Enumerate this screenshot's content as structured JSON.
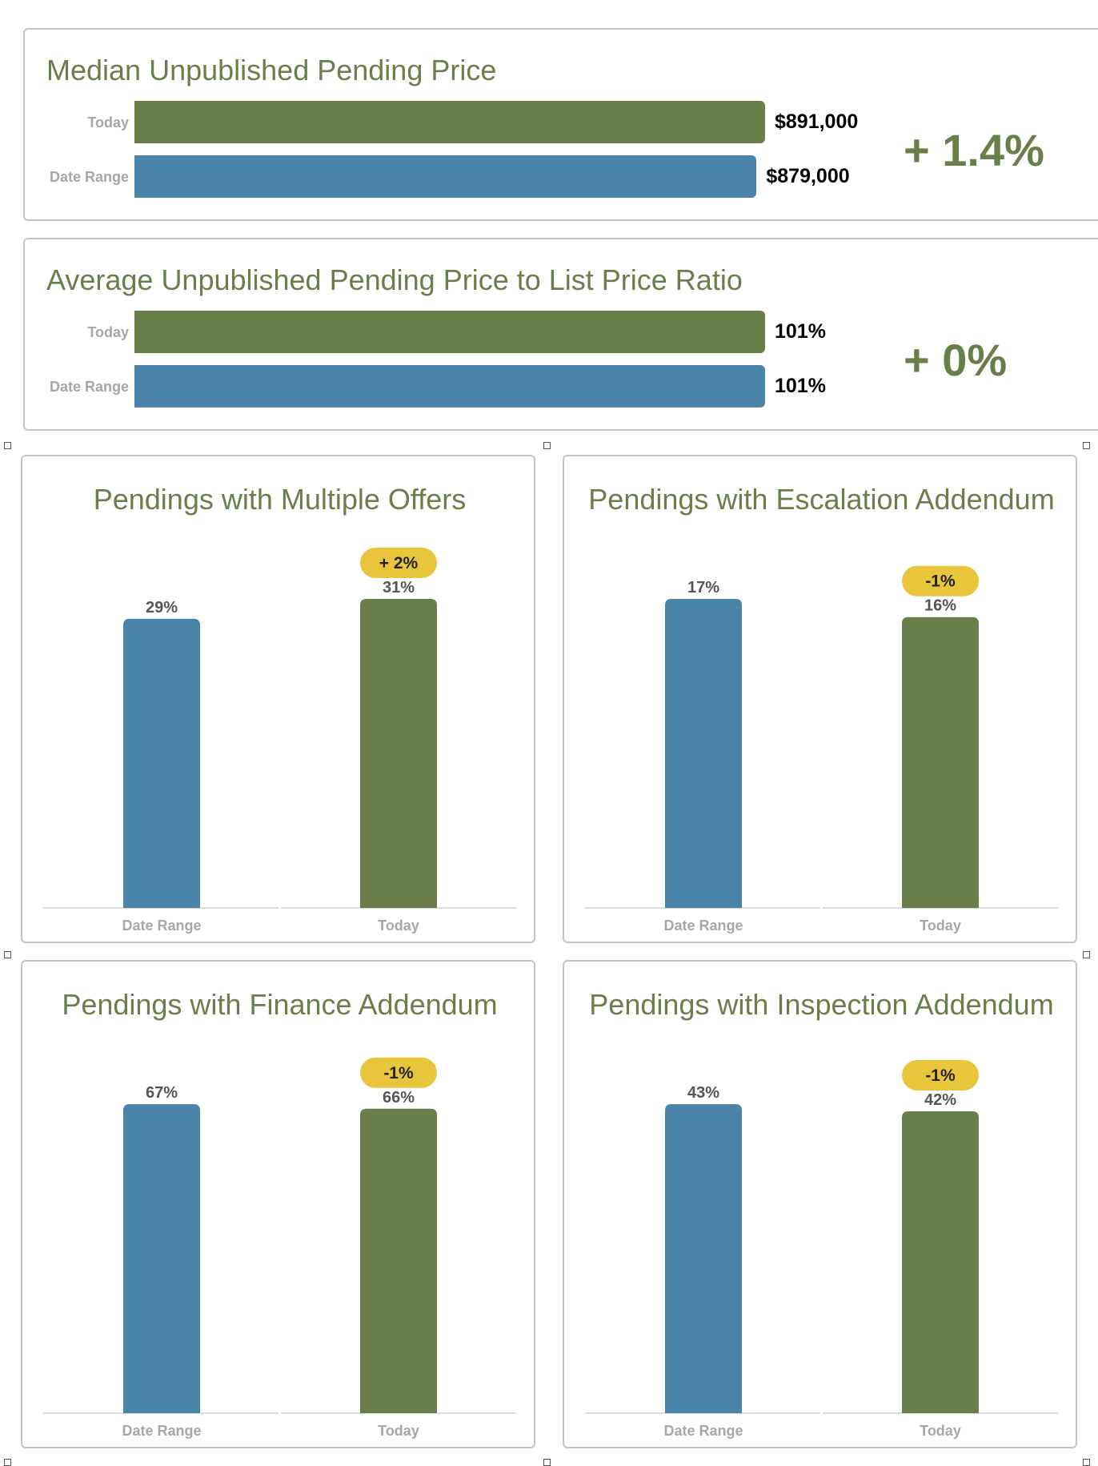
{
  "colors": {
    "today": "#697f4a",
    "date_range": "#4a84a8",
    "badge": "#e8c53a",
    "title": "#697f4a",
    "axis_label": "#a7a7a7",
    "data_label": "#555555"
  },
  "horizontal_panels": [
    {
      "title": "Median Unpublished Pending Price",
      "change": "+ 1.4%",
      "rows": [
        {
          "label": "Today",
          "display": "$891,000",
          "value": 891000,
          "series": "today"
        },
        {
          "label": "Date Range",
          "display": "$879,000",
          "value": 879000,
          "series": "date_range"
        }
      ]
    },
    {
      "title": "Average Unpublished Pending Price to List Price Ratio",
      "change": "+ 0%",
      "rows": [
        {
          "label": "Today",
          "display": "101%",
          "value": 101,
          "series": "today"
        },
        {
          "label": "Date Range",
          "display": "101%",
          "value": 101,
          "series": "date_range"
        }
      ]
    }
  ],
  "chart_data": [
    {
      "type": "bar",
      "orientation": "horizontal",
      "title": "Median Unpublished Pending Price",
      "categories": [
        "Today",
        "Date Range"
      ],
      "values": [
        891000,
        879000
      ],
      "data_labels": [
        "$891,000",
        "$879,000"
      ],
      "change": "+ 1.4%"
    },
    {
      "type": "bar",
      "orientation": "horizontal",
      "title": "Average Unpublished Pending Price to List Price Ratio",
      "categories": [
        "Today",
        "Date Range"
      ],
      "values": [
        101,
        101
      ],
      "data_labels": [
        "101%",
        "101%"
      ],
      "change": "+ 0%"
    },
    {
      "type": "bar",
      "title": "Pendings with Multiple Offers",
      "categories": [
        "Date Range",
        "Today"
      ],
      "values": [
        29,
        31
      ],
      "data_labels": [
        "29%",
        "31%"
      ],
      "change_badge": "+ 2%",
      "ylim": [
        0,
        31
      ]
    },
    {
      "type": "bar",
      "title": "Pendings with Escalation Addendum",
      "categories": [
        "Date Range",
        "Today"
      ],
      "values": [
        17,
        16
      ],
      "data_labels": [
        "17%",
        "16%"
      ],
      "change_badge": "-1%",
      "ylim": [
        0,
        17
      ]
    },
    {
      "type": "bar",
      "title": "Pendings with Finance Addendum",
      "categories": [
        "Date Range",
        "Today"
      ],
      "values": [
        67,
        66
      ],
      "data_labels": [
        "67%",
        "66%"
      ],
      "change_badge": "-1%",
      "ylim": [
        0,
        67
      ]
    },
    {
      "type": "bar",
      "title": "Pendings with Inspection Addendum",
      "categories": [
        "Date Range",
        "Today"
      ],
      "values": [
        43,
        42
      ],
      "data_labels": [
        "43%",
        "42%"
      ],
      "change_badge": "-1%",
      "ylim": [
        0,
        43
      ]
    }
  ]
}
